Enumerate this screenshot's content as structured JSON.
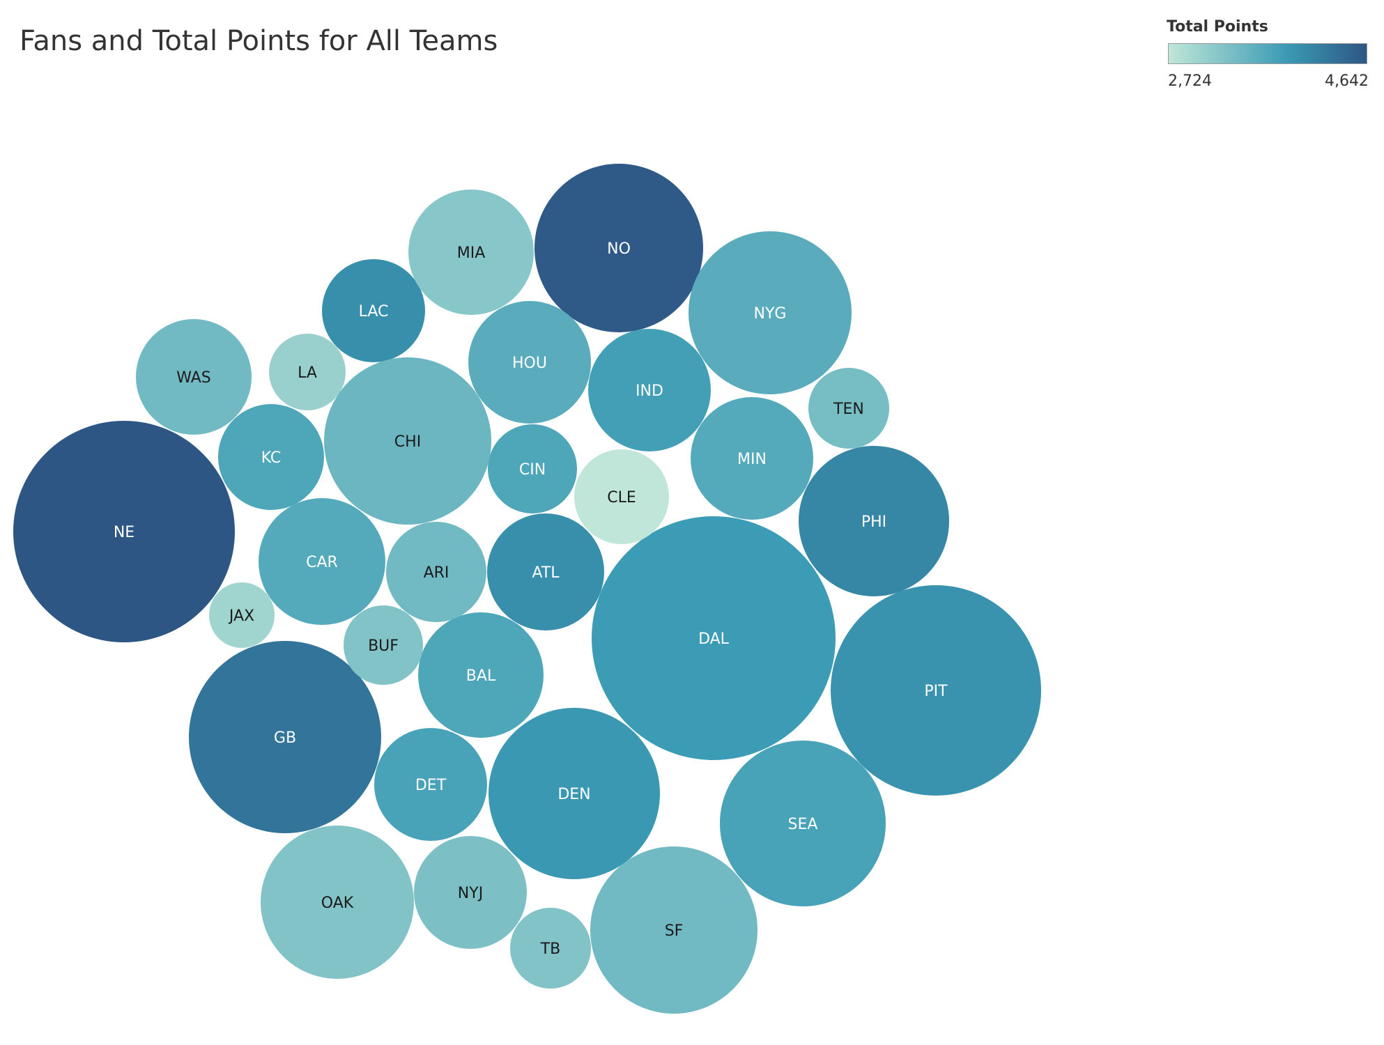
{
  "chart_data": {
    "type": "bubble",
    "title": "Fans and Total Points for All Teams",
    "size_measure": "Fans",
    "color_measure": "Total Points",
    "legend": {
      "title": "Total Points",
      "min_label": "2,724",
      "max_label": "4,642",
      "min": 2724,
      "max": 4642,
      "color_low": "#bfe6d8",
      "color_mid": "#3a9ab4",
      "color_high": "#2e5685",
      "placement": "top-right"
    },
    "bubbles": [
      {
        "team": "NE",
        "total_points": 4642
      },
      {
        "team": "NO",
        "total_points": 4600
      },
      {
        "team": "GB",
        "total_points": 4300
      },
      {
        "team": "PHI",
        "total_points": 4100
      },
      {
        "team": "LAC",
        "total_points": 4000
      },
      {
        "team": "ATL",
        "total_points": 4000
      },
      {
        "team": "PIT",
        "total_points": 3950
      },
      {
        "team": "DEN",
        "total_points": 3900
      },
      {
        "team": "DAL",
        "total_points": 3850
      },
      {
        "team": "IND",
        "total_points": 3800
      },
      {
        "team": "SEA",
        "total_points": 3750
      },
      {
        "team": "DET",
        "total_points": 3750
      },
      {
        "team": "BAL",
        "total_points": 3700
      },
      {
        "team": "CIN",
        "total_points": 3700
      },
      {
        "team": "KC",
        "total_points": 3700
      },
      {
        "team": "CAR",
        "total_points": 3650
      },
      {
        "team": "MIN",
        "total_points": 3650
      },
      {
        "team": "HOU",
        "total_points": 3600
      },
      {
        "team": "NYG",
        "total_points": 3600
      },
      {
        "team": "CHI",
        "total_points": 3450
      },
      {
        "team": "SF",
        "total_points": 3400
      },
      {
        "team": "ARI",
        "total_points": 3400
      },
      {
        "team": "WAS",
        "total_points": 3400
      },
      {
        "team": "TEN",
        "total_points": 3350
      },
      {
        "team": "NYJ",
        "total_points": 3300
      },
      {
        "team": "TB",
        "total_points": 3250
      },
      {
        "team": "BUF",
        "total_points": 3250
      },
      {
        "team": "OAK",
        "total_points": 3250
      },
      {
        "team": "MIA",
        "total_points": 3200
      },
      {
        "team": "LA",
        "total_points": 3050
      },
      {
        "team": "JAX",
        "total_points": 3000
      },
      {
        "team": "CLE",
        "total_points": 2724
      }
    ]
  }
}
